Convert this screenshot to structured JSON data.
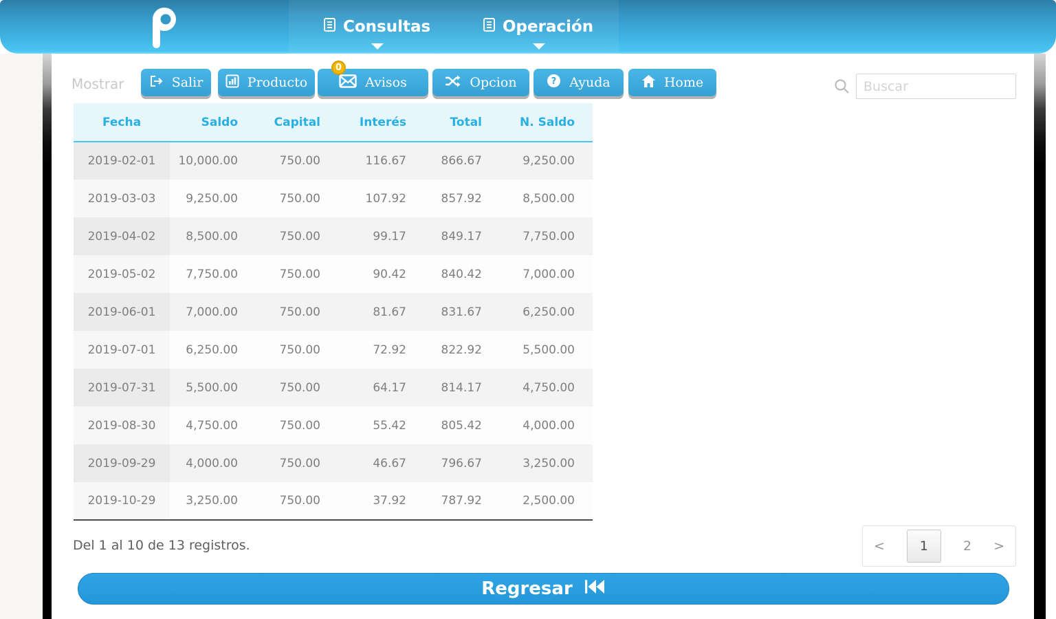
{
  "header": {
    "nav": [
      {
        "label": "Consultas",
        "icon": "document-icon"
      },
      {
        "label": "Operación",
        "icon": "document-icon"
      }
    ]
  },
  "toolbar": {
    "mostrar_label": "Mostrar",
    "buttons": [
      {
        "label": "Salir",
        "icon": "logout-icon"
      },
      {
        "label": "Producto",
        "icon": "product-chart-icon"
      },
      {
        "label": "Avisos",
        "icon": "envelope-icon",
        "badge": "0"
      },
      {
        "label": "Opcion",
        "icon": "shuffle-icon"
      },
      {
        "label": "Ayuda",
        "icon": "help-icon"
      },
      {
        "label": "Home",
        "icon": "home-icon"
      }
    ],
    "search": {
      "placeholder": "Buscar",
      "value": "",
      "icon": "search-icon"
    }
  },
  "table": {
    "columns": [
      "Fecha",
      "Saldo",
      "Capital",
      "Interés",
      "Total",
      "N. Saldo"
    ],
    "rows": [
      [
        "2019-02-01",
        "10,000.00",
        "750.00",
        "116.67",
        "866.67",
        "9,250.00"
      ],
      [
        "2019-03-03",
        "9,250.00",
        "750.00",
        "107.92",
        "857.92",
        "8,500.00"
      ],
      [
        "2019-04-02",
        "8,500.00",
        "750.00",
        "99.17",
        "849.17",
        "7,750.00"
      ],
      [
        "2019-05-02",
        "7,750.00",
        "750.00",
        "90.42",
        "840.42",
        "7,000.00"
      ],
      [
        "2019-06-01",
        "7,000.00",
        "750.00",
        "81.67",
        "831.67",
        "6,250.00"
      ],
      [
        "2019-07-01",
        "6,250.00",
        "750.00",
        "72.92",
        "822.92",
        "5,500.00"
      ],
      [
        "2019-07-31",
        "5,500.00",
        "750.00",
        "64.17",
        "814.17",
        "4,750.00"
      ],
      [
        "2019-08-30",
        "4,750.00",
        "750.00",
        "55.42",
        "805.42",
        "4,000.00"
      ],
      [
        "2019-09-29",
        "4,000.00",
        "750.00",
        "46.67",
        "796.67",
        "3,250.00"
      ],
      [
        "2019-10-29",
        "3,250.00",
        "750.00",
        "37.92",
        "787.92",
        "2,500.00"
      ]
    ]
  },
  "footer": {
    "info": "Del 1 al 10 de 13 registros.",
    "pagination": {
      "prev": "<",
      "pages": [
        "1",
        "2"
      ],
      "current": "1",
      "next": ">"
    },
    "back_label": "Regresar",
    "back_icon": "rewind-icon"
  },
  "colors": {
    "header_gradient_top": "#2b7ea7",
    "header_gradient_bottom": "#4cc6f2",
    "button_blue": "#3faade",
    "table_header_bg": "#e7f6fb",
    "table_header_text": "#27b0e2",
    "badge_gold": "#f2b705",
    "back_button_blue": "#2a9fe0"
  }
}
